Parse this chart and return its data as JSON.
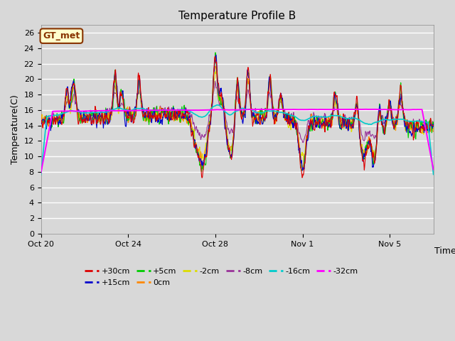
{
  "title": "Temperature Profile B",
  "xlabel": "Time",
  "ylabel": "Temperature(C)",
  "ylim": [
    0,
    27
  ],
  "yticks": [
    0,
    2,
    4,
    6,
    8,
    10,
    12,
    14,
    16,
    18,
    20,
    22,
    24,
    26
  ],
  "xtick_labels": [
    "Oct 20",
    "Oct 24",
    "Oct 28",
    "Nov 1",
    "Nov 5"
  ],
  "xtick_positions": [
    0,
    4,
    8,
    12,
    16
  ],
  "xlim": [
    0,
    18
  ],
  "bg_color": "#d8d8d8",
  "grid_color": "#ffffff",
  "series_colors": {
    "+30cm": "#dd0000",
    "+15cm": "#0000cc",
    "+5cm": "#00cc00",
    "0cm": "#ff8800",
    "-2cm": "#dddd00",
    "-8cm": "#993399",
    "-16cm": "#00cccc",
    "-32cm": "#ff00ff"
  },
  "legend_label": "GT_met",
  "legend_bg": "#ffffcc",
  "legend_border": "#883300",
  "title_fontsize": 11,
  "axis_fontsize": 9,
  "tick_fontsize": 8
}
